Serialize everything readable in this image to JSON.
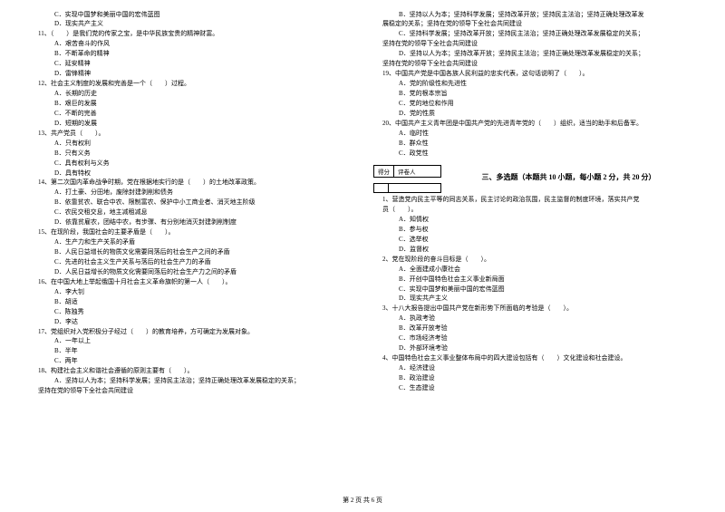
{
  "footer": "第 2 页 共 6 页",
  "left": {
    "opts0": [
      "C．实现中国梦和美丽中国的宏伟蓝图",
      "D．现实共产主义"
    ],
    "q11": "11、（　　）是我们党的传家之宝，是中华民族宝贵的精神财富。",
    "opts11": [
      "A．艰苦奋斗的作风",
      "B．不断革命的精神",
      "C．延安精神",
      "D．雷锋精神"
    ],
    "q12": "12、社会主义制度的发展和完善是一个（　　）过程。",
    "opts12": [
      "A．长期的历史",
      "B．艰巨的发展",
      "C．不断的完善",
      "D．短期的发展"
    ],
    "q13": "13、共产党员（　　）。",
    "opts13": [
      "A．只有权利",
      "B．只有义务",
      "C．具有权利与义务",
      "D．具有特权"
    ],
    "q14": "14、第二次国内革命战争时期，党在根据地实行的是（　　）的土地改革政策。",
    "opts14": [
      "A．打土豪、分田地，废除封建剥削和债务",
      "B．依靠贫农、联合中农、限制富农、保护中小工商业者、消灭地主阶级",
      "C．农民交租交息，地主减租减息",
      "D．依靠贫雇农，团结中农，有步骤、有分别地消灭封建剥削制度"
    ],
    "q15": "15、在现阶段，我国社会的主要矛盾是（　　）。",
    "opts15": [
      "A．生产力和生产关系的矛盾",
      "B．人民日益增长的物质文化需要同落后的社会生产之间的矛盾",
      "C．先进的社会主义生产关系与落后的社会生产力的矛盾",
      "D．人民日益增长的物质文化需要同落后的社会生产力之间的矛盾"
    ],
    "q16": "16、在中国大地上举起俄国十月社会主义革命旗帜的第一人（　　）。",
    "opts16": [
      "A．李大钊",
      "B．胡适",
      "C．陈独秀",
      "D．李达"
    ],
    "q17": "17、党组织对入党积极分子经过（　　）的教育培养，方可确定为发展对象。",
    "opts17": [
      "A．一年以上",
      "B．半年",
      "C．两年"
    ],
    "q18": "18、构建社会主义和谐社会遵循的原则主要有（　　）。",
    "opts18a": "A．坚持以人为本；坚持科学发展；坚持民主法治；坚持正确处理改革发展稳定的关系；",
    "opts18a2": "坚持在党的领导下全社会共同建设"
  },
  "right": {
    "opts18b": "B．坚持以人为本；坚持科学发展；坚持改革开放；坚持民主法治；坚持正确处理改革发",
    "opts18b2": "展稳定的关系；坚持在党的领导下全社会共同建设",
    "opts18c": "C．坚持科学发展；坚持改革开放；坚持民主法治；坚持正确处理改革发展稳定的关系；",
    "opts18c2": "坚持在党的领导下全社会共同建设",
    "opts18d": "D．坚持以人为本；坚持改革开放；坚持民主法治；坚持正确处理改革发展稳定的关系；",
    "opts18d2": "坚持在党的领导下全社会共同建设",
    "q19": "19、中国共产党是中国各族人民利益的忠实代表，这句话说明了（　　）。",
    "opts19": [
      "A．党的阶级性和先进性",
      "B．党的根本宗旨",
      "C．党的地位和作用",
      "D．党的性质"
    ],
    "q20": "20、中国共产主义青年团是中国共产党的先进青年党的（　　）组织，适当的助手和后备军。",
    "opts20": [
      "A．临时性",
      "B．群众性",
      "C．政党性"
    ],
    "score": {
      "left": "得分",
      "right": "评卷人"
    },
    "section3": "三、多选题（本题共 10 小题，每小题 2 分，共 20 分）",
    "mq1": "1、营造党内民主平等的同志关系，民主讨论的政治氛围，民主监督的制度环境，落实共产党",
    "mq1b": "员（　　）。",
    "mopts1": [
      "A．知情权",
      "B．参与权",
      "C．选举权",
      "D．监督权"
    ],
    "mq2": "2、党在现阶段的奋斗目标是（　　）。",
    "mopts2": [
      "A．全面建成小康社会",
      "B．开创中国特色社会主义事业新局面",
      "C．实现中国梦和美丽中国的宏伟蓝图",
      "D．现实共产主义"
    ],
    "mq3": "3、十八大报告提出中国共产党在新形势下所面临的考验是（　　）。",
    "mopts3": [
      "A．执政考验",
      "B．改革开放考验",
      "C．市场经济考验",
      "D．外部环境考验"
    ],
    "mq4": "4、中国特色社会主义事业整体布局中的四大建设包括有（　　）文化建设和社会建设。",
    "mopts4": [
      "A．经济建设",
      "B．政治建设",
      "C．生态建设"
    ]
  }
}
